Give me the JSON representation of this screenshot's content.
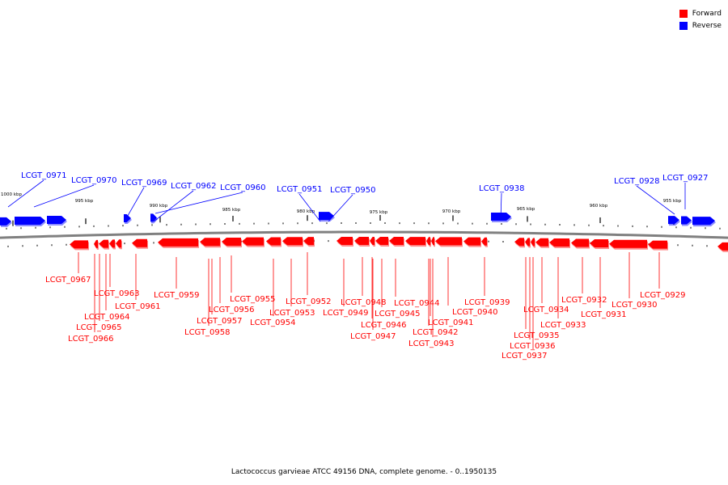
{
  "legend": {
    "forward_label": "Forward",
    "reverse_label": "Reverse",
    "forward_color": "#ff0000",
    "reverse_color": "#0000ff"
  },
  "caption": "Lactococcus garvieae ATCC 49156 DNA, complete genome. - 0..1950135",
  "colors": {
    "forward": "#ff0000",
    "reverse": "#0000ff",
    "backbone": "#808080"
  },
  "scale_labels": [
    "1000 kbp",
    "995 kbp",
    "990 kbp",
    "985 kbp",
    "980 kbp",
    "975 kbp",
    "970 kbp",
    "965 kbp",
    "960 kbp",
    "955 kbp"
  ],
  "reverse_genes": [
    "LCGT_0971",
    "LCGT_0970",
    "LCGT_0969",
    "LCGT_0962",
    "LCGT_0960",
    "LCGT_0951",
    "LCGT_0950",
    "LCGT_0938",
    "LCGT_0928",
    "LCGT_0927"
  ],
  "forward_genes": [
    "LCGT_0967",
    "LCGT_0966",
    "LCGT_0965",
    "LCGT_0964",
    "LCGT_0963",
    "LCGT_0961",
    "LCGT_0959",
    "LCGT_0958",
    "LCGT_0957",
    "LCGT_0956",
    "LCGT_0955",
    "LCGT_0954",
    "LCGT_0953",
    "LCGT_0952",
    "LCGT_0949",
    "LCGT_0948",
    "LCGT_0947",
    "LCGT_0946",
    "LCGT_0945",
    "LCGT_0944",
    "LCGT_0943",
    "LCGT_0942",
    "LCGT_0941",
    "LCGT_0940",
    "LCGT_0939",
    "LCGT_0937",
    "LCGT_0936",
    "LCGT_0935",
    "LCGT_0934",
    "LCGT_0933",
    "LCGT_0932",
    "LCGT_0931",
    "LCGT_0930",
    "LCGT_0929"
  ]
}
